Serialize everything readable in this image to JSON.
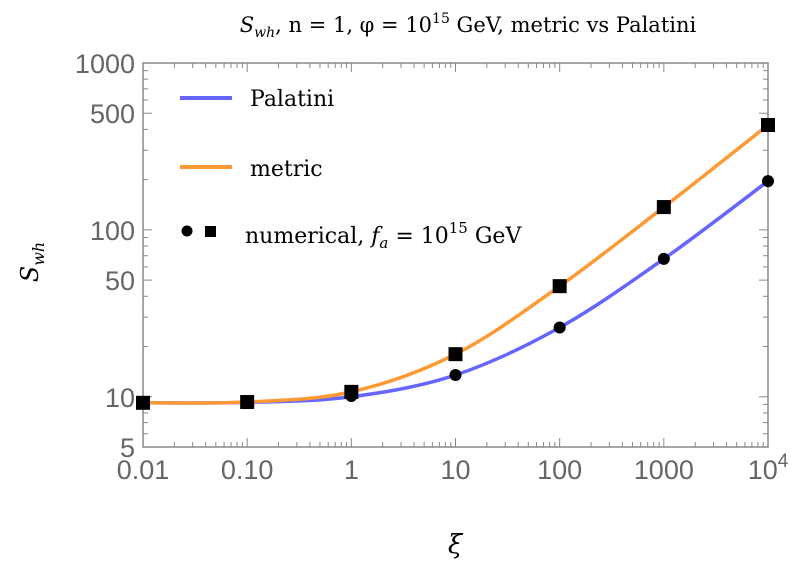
{
  "chart_data": {
    "type": "line",
    "title": "S_wh, n = 1, φ = 10^15 GeV, metric vs Palatini",
    "title_parts": {
      "s": "S",
      "sub": "wh",
      "mid": ",  n = 1,  φ = 10",
      "sup": "15",
      "tail": " GeV, metric vs Palatini"
    },
    "xlabel": "ξ",
    "ylabel": "S_wh",
    "ylabel_parts": {
      "s": "S",
      "sub": "wh"
    },
    "x_scale": "log",
    "y_scale": "log",
    "xlim": [
      0.01,
      10000
    ],
    "ylim": [
      5,
      1000
    ],
    "x_ticks": [
      {
        "value": 0.01,
        "label": "0.01"
      },
      {
        "value": 0.1,
        "label": "0.10"
      },
      {
        "value": 1,
        "label": "1"
      },
      {
        "value": 10,
        "label": "10"
      },
      {
        "value": 100,
        "label": "100"
      },
      {
        "value": 1000,
        "label": "1000"
      },
      {
        "value": 10000,
        "label": "10",
        "sup": "4"
      }
    ],
    "y_ticks": [
      {
        "value": 5,
        "label": "5"
      },
      {
        "value": 10,
        "label": "10"
      },
      {
        "value": 50,
        "label": "50"
      },
      {
        "value": 100,
        "label": "100"
      },
      {
        "value": 500,
        "label": "500"
      },
      {
        "value": 1000,
        "label": "1000"
      }
    ],
    "grid": false,
    "legend_placement": "top-left",
    "series": [
      {
        "name": "Palatini",
        "kind": "line",
        "color": "#6666ff",
        "x": [
          0.01,
          0.1,
          1,
          10,
          100,
          1000,
          10000
        ],
        "y": [
          9.2,
          9.25,
          10.0,
          13.5,
          26,
          67,
          196
        ]
      },
      {
        "name": "metric",
        "kind": "line",
        "color": "#ff9933",
        "x": [
          0.01,
          0.1,
          1,
          10,
          100,
          1000,
          10000
        ],
        "y": [
          9.2,
          9.3,
          10.7,
          18,
          46,
          137,
          425
        ]
      },
      {
        "kind": "scatter",
        "marker": "circle",
        "color": "#000000",
        "x": [
          0.01,
          0.1,
          1,
          10,
          100,
          1000,
          10000
        ],
        "y": [
          9.2,
          9.25,
          10.1,
          13.5,
          26,
          67,
          196
        ]
      },
      {
        "kind": "scatter",
        "marker": "square",
        "color": "#000000",
        "x": [
          0.01,
          0.1,
          1,
          10,
          100,
          1000,
          10000
        ],
        "y": [
          9.2,
          9.3,
          10.7,
          18,
          46,
          137,
          425
        ]
      }
    ],
    "legend": [
      {
        "label": "Palatini"
      },
      {
        "label": "metric"
      },
      {
        "label_parts": {
          "pre": "numerical, ",
          "f": "f",
          "sub": "a",
          "mid": " = 10",
          "sup": "15",
          "tail": " GeV"
        }
      }
    ]
  }
}
